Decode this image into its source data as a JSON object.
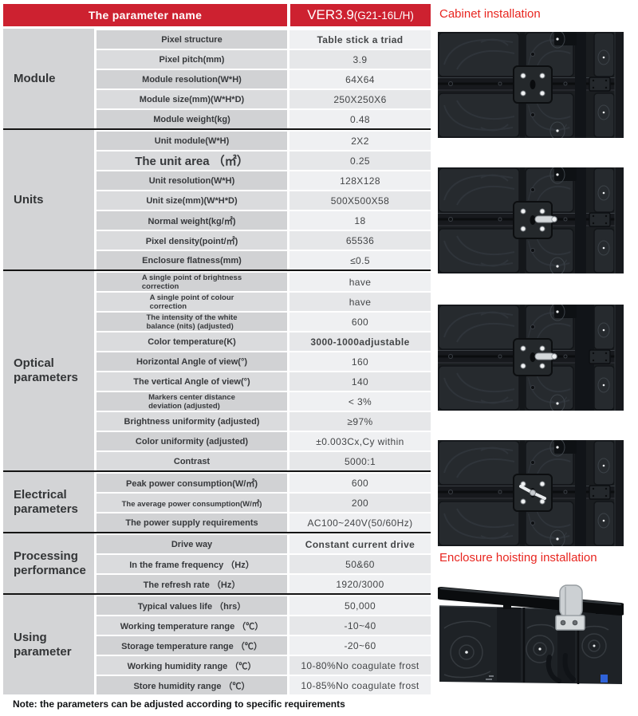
{
  "colors": {
    "header_red": "#cd2130",
    "title_red": "#e8251f",
    "section_divider": "#141414",
    "cell_gray": "#d3d4d6",
    "value_gray": "#eff0f2"
  },
  "header": {
    "left": "The parameter name",
    "model_main": "VER3.9",
    "model_sub": "(G21-16L/H)"
  },
  "table": {
    "sections": [
      {
        "id": "module",
        "name": "Module",
        "rows": [
          {
            "label": "Pixel structure",
            "value": "Table stick a triad",
            "value_bold": true
          },
          {
            "label": "Pixel pitch(mm)",
            "value": "3.9"
          },
          {
            "label": "Module resolution(W*H)",
            "value": "64X64"
          },
          {
            "label": "Module size(mm)(W*H*D)",
            "value": "250X250X6"
          },
          {
            "label": "Module weight(kg)",
            "value": "0.48"
          }
        ]
      },
      {
        "id": "units",
        "name": "Units",
        "rows": [
          {
            "label": "Unit module(W*H)",
            "value": "2X2"
          },
          {
            "label": "The unit area （㎡）",
            "value": "0.25",
            "style": "large"
          },
          {
            "label": "Unit resolution(W*H)",
            "value": "128X128"
          },
          {
            "label": "Unit size(mm)(W*H*D)",
            "value": "500X500X58"
          },
          {
            "label": "Normal weight(kg/㎡)",
            "value": "18"
          },
          {
            "label": "Pixel density(point/㎡)",
            "value": "65536"
          },
          {
            "label": "Enclosure flatness(mm)",
            "value": "≤0.5"
          }
        ]
      },
      {
        "id": "optical",
        "name": "Optical\nparameters",
        "rows": [
          {
            "label": "A single point of brightness\ncorrection",
            "value": "have",
            "style": "small"
          },
          {
            "label": "A single point of colour\ncorrection",
            "value": "have",
            "style": "small"
          },
          {
            "label": "The intensity of the white\nbalance (nits) (adjusted)",
            "value": "600",
            "style": "small"
          },
          {
            "label": "Color temperature(K)",
            "value": "3000-1000adjustable",
            "value_bold": true
          },
          {
            "label": "Horizontal Angle of view(°)",
            "value": "160"
          },
          {
            "label": "The vertical Angle of view(°)",
            "value": "140"
          },
          {
            "label": "Markers center distance\ndeviation (adjusted)",
            "value": "< 3%",
            "style": "small"
          },
          {
            "label": "Brightness uniformity (adjusted)",
            "value": "≥97%"
          },
          {
            "label": "Color uniformity (adjusted)",
            "value": "±0.003Cx,Cy within"
          },
          {
            "label": "Contrast",
            "value": "5000:1"
          }
        ]
      },
      {
        "id": "electrical",
        "name": "Electrical\nparameters",
        "rows": [
          {
            "label": "Peak power consumption(W/㎡)",
            "value": "600"
          },
          {
            "label": "The average power consumption(W/㎡)",
            "value": "200",
            "style": "msmall"
          },
          {
            "label": "The power supply requirements",
            "value": "AC100~240V(50/60Hz)"
          }
        ]
      },
      {
        "id": "processing",
        "name": "Processing\nperformance",
        "rows": [
          {
            "label": "Drive way",
            "value": "Constant current drive",
            "value_bold": true
          },
          {
            "label": "In the frame frequency （Hz）",
            "value": "50&60"
          },
          {
            "label": "The refresh rate （Hz）",
            "value": "1920/3000"
          }
        ]
      },
      {
        "id": "using",
        "name": "Using\nparameter",
        "rows": [
          {
            "label": "Typical values life （hrs）",
            "value": "50,000"
          },
          {
            "label": "Working temperature range （℃）",
            "value": "-10~40"
          },
          {
            "label": "Storage temperature range （℃）",
            "value": "-20~60"
          },
          {
            "label": "Working humidity range （℃）",
            "value": "10-80%No coagulate frost"
          },
          {
            "label": "Store humidity range （℃）",
            "value": "10-85%No coagulate frost"
          }
        ]
      }
    ]
  },
  "right_panel": {
    "cabinet_title": "Cabinet installation",
    "hoisting_title": "Enclosure hoisting installation"
  },
  "note": "Note: the parameters can be adjusted according to specific requirements"
}
